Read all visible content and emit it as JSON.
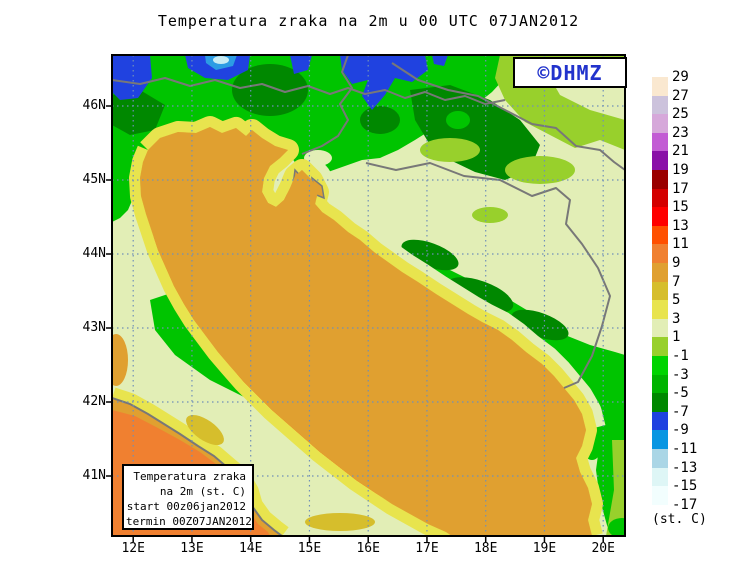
{
  "title": "Temperatura zraka na 2m u 00 UTC 07JAN2012",
  "logo": {
    "text": "©DHMZ"
  },
  "info_box": {
    "lines": [
      "Temperatura zraka",
      "na 2m (st. C)",
      "start 00z06jan2012",
      "termin 00Z07JAN2012"
    ]
  },
  "axes": {
    "lon_labels": [
      "12E",
      "13E",
      "14E",
      "15E",
      "16E",
      "17E",
      "18E",
      "19E",
      "20E"
    ],
    "lat_labels": [
      "46N",
      "45N",
      "44N",
      "43N",
      "42N",
      "41N"
    ]
  },
  "legend": {
    "unit_label": "(st. C)",
    "levels": [
      "29",
      "27",
      "25",
      "23",
      "21",
      "19",
      "17",
      "15",
      "13",
      "11",
      "9",
      "7",
      "5",
      "3",
      "1",
      "-1",
      "-3",
      "-5",
      "-7",
      "-9",
      "-11",
      "-13",
      "-15",
      "-17"
    ],
    "colors": [
      "#FAE8D0",
      "#CCC2DC",
      "#D6A8DA",
      "#C25CD4",
      "#8A10A8",
      "#9A0000",
      "#D40000",
      "#FF0000",
      "#FF5000",
      "#F08030",
      "#E0A030",
      "#D6BE2C",
      "#E8E44E",
      "#E2EEB6",
      "#98D02C",
      "#00D400",
      "#00B400",
      "#008800",
      "#2042E0",
      "#0896E2",
      "#AAD6E6",
      "#DEF6F6",
      "#F2FEFE"
    ]
  },
  "colors": {
    "frame": "#000000",
    "grid": "#7090B8",
    "coast_border": "#787878",
    "logo_text": "#2233CC",
    "sea_warm": "#F08030",
    "sea_hot": "#FF5000",
    "land_green": "#00C400",
    "land_dark_green": "#008800",
    "alpine_blue": "#2042E0"
  },
  "chart_data": {
    "type": "heatmap",
    "title": "Temperatura zraka na 2m u 00 UTC 07JAN2012",
    "unit": "st. C",
    "colorbar_levels": [
      29,
      27,
      25,
      23,
      21,
      19,
      17,
      15,
      13,
      11,
      9,
      7,
      5,
      3,
      1,
      -1,
      -3,
      -5,
      -7,
      -9,
      -11,
      -13,
      -15,
      -17
    ],
    "colorbar_colors": [
      "#FAE8D0",
      "#CCC2DC",
      "#D6A8DA",
      "#C25CD4",
      "#8A10A8",
      "#9A0000",
      "#D40000",
      "#FF0000",
      "#FF5000",
      "#F08030",
      "#E0A030",
      "#D6BE2C",
      "#E8E44E",
      "#E2EEB6",
      "#98D02C",
      "#00D400",
      "#00B400",
      "#008800",
      "#2042E0",
      "#0896E2",
      "#AAD6E6",
      "#DEF6F6",
      "#F2FEFE"
    ],
    "lon_range": [
      "12E",
      "20E"
    ],
    "lat_range": [
      "41N",
      "46N"
    ],
    "grid": true,
    "legend_position": "right"
  }
}
